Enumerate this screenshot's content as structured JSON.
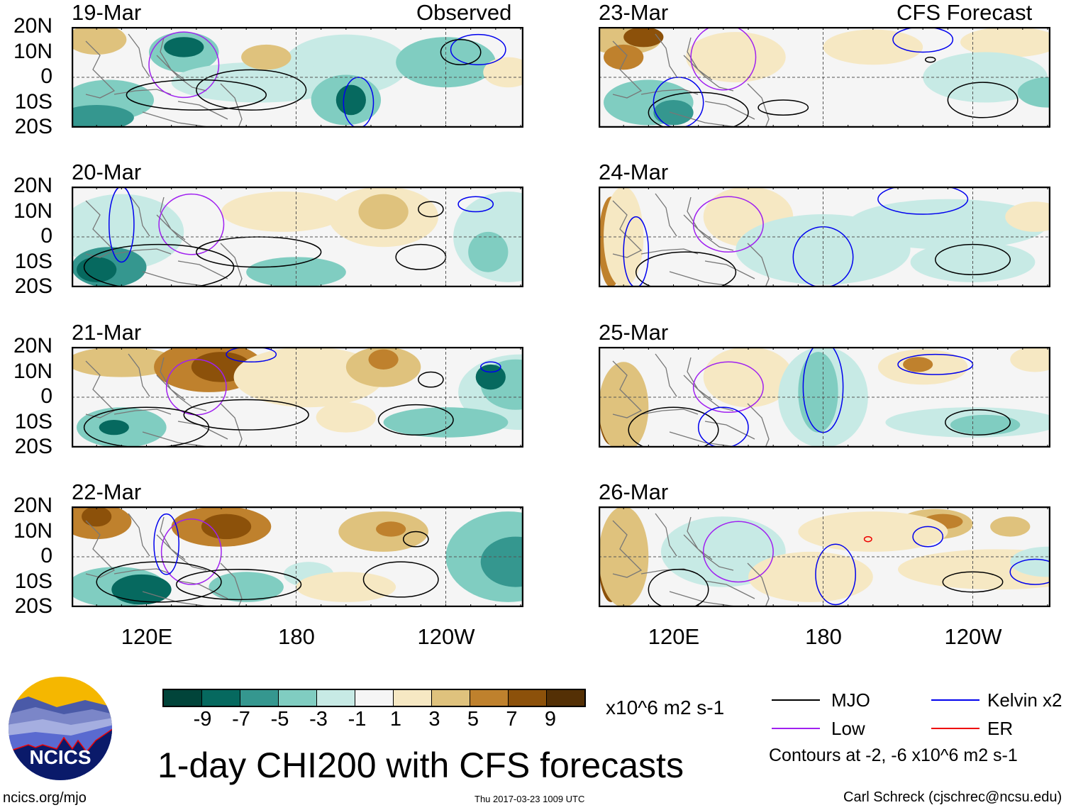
{
  "headers": {
    "observed": "Observed",
    "forecast": "CFS Forecast"
  },
  "panels": {
    "observed": [
      {
        "date": "19-Mar"
      },
      {
        "date": "20-Mar"
      },
      {
        "date": "21-Mar"
      },
      {
        "date": "22-Mar"
      }
    ],
    "forecast": [
      {
        "date": "23-Mar"
      },
      {
        "date": "24-Mar"
      },
      {
        "date": "25-Mar"
      },
      {
        "date": "26-Mar"
      }
    ]
  },
  "lat_labels": [
    "20N",
    "10N",
    "0",
    "10S",
    "20S"
  ],
  "lon_labels": [
    "120E",
    "180",
    "120W"
  ],
  "colorbar": {
    "colors": [
      "#01443a",
      "#06695f",
      "#35978f",
      "#80cdc1",
      "#c7eae5",
      "#f5f5f5",
      "#f6e8c3",
      "#dfc27d",
      "#bf812d",
      "#8c510a",
      "#543005"
    ],
    "ticks": [
      "-9",
      "-7",
      "-5",
      "-3",
      "-1",
      "1",
      "3",
      "5",
      "7",
      "9"
    ],
    "units": "x10^6 m2 s-1"
  },
  "legend": {
    "items": [
      {
        "label": "MJO",
        "color": "#000000"
      },
      {
        "label": "Kelvin x2",
        "color": "#0000ee"
      },
      {
        "label": "Low",
        "color": "#a020f0"
      },
      {
        "label": "ER",
        "color": "#ee0000"
      }
    ],
    "contours_note": "Contours at -2, -6 x10^6 m2 s-1"
  },
  "title": "1-day CHI200 with CFS forecasts",
  "timestamp": "Thu 2017-03-23 1009 UTC",
  "logo_text": "NCICS",
  "site": "ncics.org/mjo",
  "author": "Carl Schreck (cjschrec@ncsu.edu)"
}
